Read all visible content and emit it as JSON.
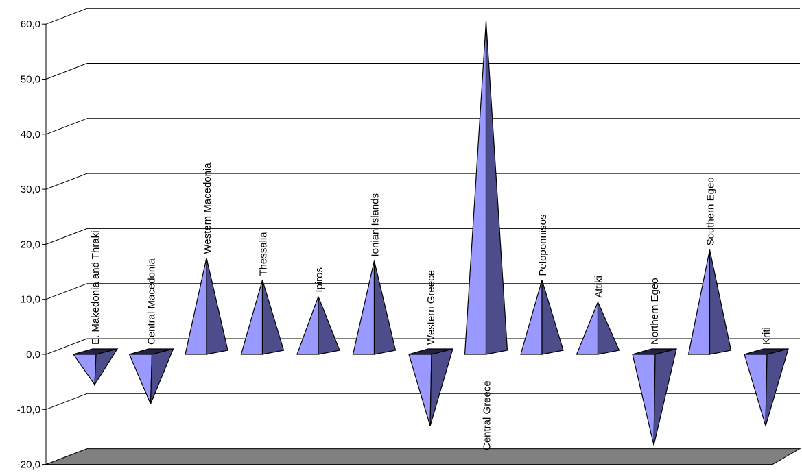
{
  "chart_data": {
    "type": "bar",
    "style": "3d-pyramid",
    "title": "",
    "xlabel": "",
    "ylabel": "",
    "categories": [
      "E. Makedonia and Thraki",
      "Central Macedonia",
      "Western Macedonia",
      "Thessalia",
      "Ipiros",
      "Ionian Islands",
      "Western Greece",
      "Central Greece",
      "Peloponnisos",
      "Attiki",
      "Northern Egeo",
      "Southern Egeo",
      "Kriti"
    ],
    "values": [
      -5.5,
      -9.0,
      17.5,
      13.5,
      10.5,
      17.0,
      -13.0,
      60.5,
      13.5,
      9.5,
      -16.5,
      19.0,
      -13.0
    ],
    "ylim": [
      -20,
      60
    ],
    "yticks": [
      "-20,0",
      "-10,0",
      "0,0",
      "10,0",
      "20,0",
      "30,0",
      "40,0",
      "50,0",
      "60,0"
    ],
    "grid": true,
    "legend": "none",
    "colors": {
      "front_face": "#9999ff",
      "side_face": "#4d4d8c",
      "top_face": "#222244",
      "floor": "#808080",
      "gridline": "#000000"
    }
  }
}
